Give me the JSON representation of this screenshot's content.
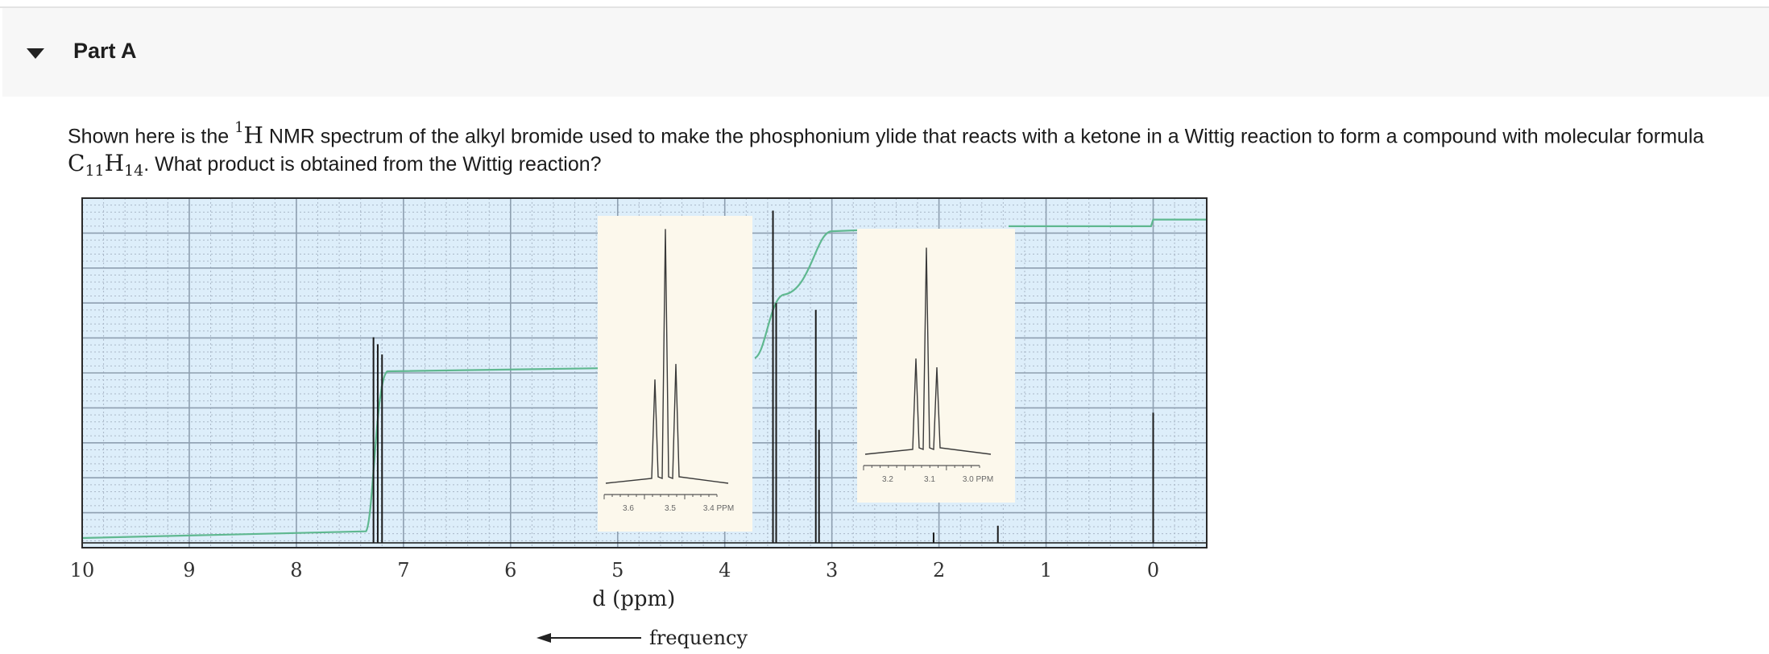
{
  "part": {
    "title": "Part A",
    "caret_icon": "caret-down-icon"
  },
  "question": {
    "text_1": "Shown here is the ",
    "nucleus_mass": "1",
    "nucleus_symbol": "H",
    "text_2": " NMR spectrum of the alkyl bromide used to make the phosphonium ylide that reacts with a ketone in a Wittig reaction to form a compound with molecular formula ",
    "formula_c": "C",
    "formula_c_count": "11",
    "formula_h": "H",
    "formula_h_count": "14",
    "text_3": ". What product is obtained from the Wittig reaction?"
  },
  "chart_data": {
    "type": "line",
    "title": "",
    "xlabel": "d (ppm)",
    "direction_label": "frequency",
    "xlim": [
      10,
      -0.5
    ],
    "x_ticks": [
      10,
      9,
      8,
      7,
      6,
      5,
      4,
      3,
      2,
      1,
      0
    ],
    "peaks": [
      {
        "ppm": 7.28,
        "height": 0.6
      },
      {
        "ppm": 7.24,
        "height": 0.58
      },
      {
        "ppm": 7.2,
        "height": 0.55
      },
      {
        "ppm": 3.55,
        "height": 0.97
      },
      {
        "ppm": 3.52,
        "height": 0.7
      },
      {
        "ppm": 3.15,
        "height": 0.68
      },
      {
        "ppm": 3.12,
        "height": 0.33
      },
      {
        "ppm": 2.05,
        "height": 0.03
      },
      {
        "ppm": 1.45,
        "height": 0.05
      },
      {
        "ppm": 0.0,
        "height": 0.38
      }
    ],
    "insets": [
      {
        "ticks": [
          "3.6",
          "3.5",
          "3.4 PPM"
        ],
        "peak_heights": [
          0.4,
          0.98,
          0.46
        ]
      },
      {
        "ticks": [
          "3.2",
          "3.1",
          "3.0 PPM"
        ],
        "peak_heights": [
          0.44,
          0.95,
          0.4
        ]
      }
    ],
    "colors": {
      "background": "#ddeefa",
      "grid_major": "#8e9fb0",
      "grid_minor": "#aab8c8",
      "integral": "#5fb890",
      "spectrum": "#1b1b1b",
      "inset_background": "#fcf8ec"
    }
  }
}
